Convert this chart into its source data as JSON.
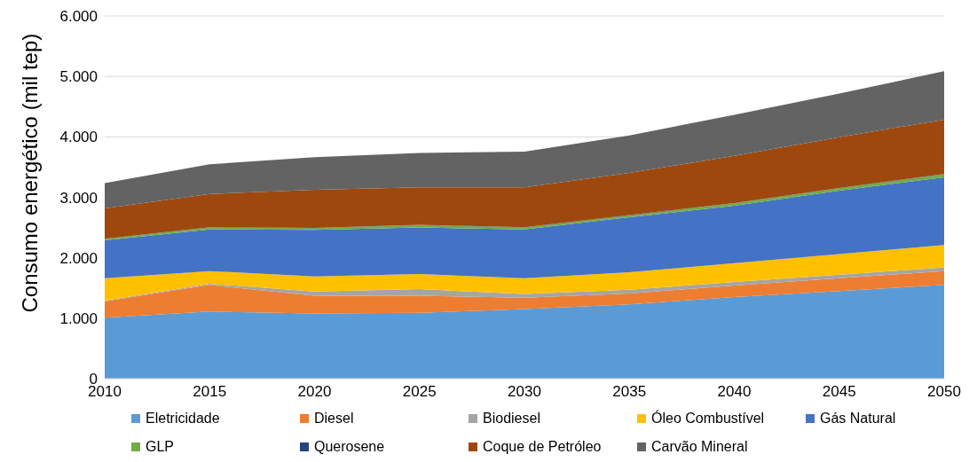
{
  "chart_data": {
    "type": "area",
    "stacked": true,
    "ylabel": "Consumo energético (mil tep)",
    "x": [
      2010,
      2015,
      2020,
      2025,
      2030,
      2035,
      2040,
      2045,
      2050
    ],
    "xlim": [
      2010,
      2050
    ],
    "xticks": [
      2010,
      2015,
      2020,
      2025,
      2030,
      2035,
      2040,
      2045,
      2050
    ],
    "ylim": [
      0,
      6000
    ],
    "yticks": [
      0,
      {
        "value": 1000,
        "label": "1.000"
      },
      {
        "value": 2000,
        "label": "2.000"
      },
      {
        "value": 3000,
        "label": "3.000"
      },
      {
        "value": 4000,
        "label": "4.000"
      },
      {
        "value": 5000,
        "label": "5.000"
      },
      {
        "value": 6000,
        "label": "6.000"
      }
    ],
    "grid": "y",
    "legend": "bottom",
    "series": [
      {
        "name": "Eletricidade",
        "color": "#5b9bd5",
        "values": [
          1010,
          1110,
          1080,
          1090,
          1150,
          1230,
          1350,
          1450,
          1550
        ]
      },
      {
        "name": "Diesel",
        "color": "#ed7d31",
        "values": [
          270,
          440,
          290,
          280,
          190,
          180,
          190,
          210,
          230
        ]
      },
      {
        "name": "Biodiesel",
        "color": "#a5a5a5",
        "values": [
          10,
          20,
          70,
          110,
          60,
          60,
          60,
          60,
          60
        ]
      },
      {
        "name": "Óleo Combustível",
        "color": "#ffc000",
        "values": [
          370,
          210,
          250,
          250,
          260,
          290,
          310,
          340,
          370
        ]
      },
      {
        "name": "Gás Natural",
        "color": "#4472c4",
        "values": [
          630,
          690,
          770,
          770,
          810,
          910,
          950,
          1050,
          1120
        ]
      },
      {
        "name": "GLP",
        "color": "#70ad47",
        "values": [
          20,
          30,
          30,
          40,
          30,
          30,
          40,
          40,
          50
        ]
      },
      {
        "name": "Querosene",
        "color": "#264478",
        "values": [
          5,
          5,
          5,
          5,
          5,
          5,
          5,
          5,
          5
        ]
      },
      {
        "name": "Coque de Petróleo",
        "color": "#9e480e",
        "values": [
          500,
          550,
          630,
          620,
          660,
          700,
          780,
          840,
          900
        ]
      },
      {
        "name": "Carvão Mineral",
        "color": "#636363",
        "values": [
          420,
          490,
          540,
          570,
          590,
          620,
          680,
          720,
          800
        ]
      }
    ]
  }
}
